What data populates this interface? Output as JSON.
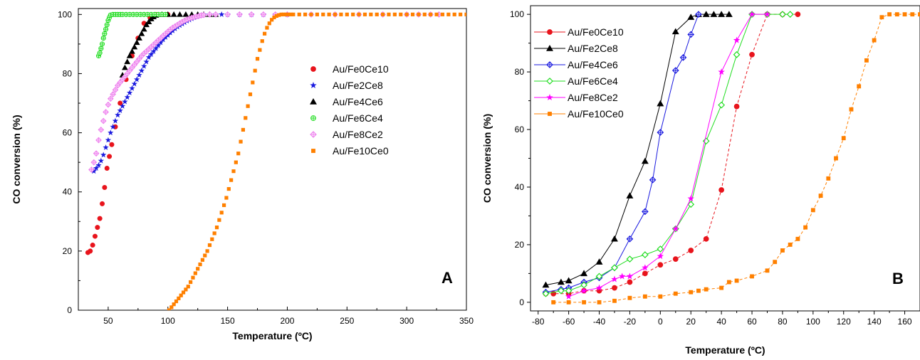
{
  "chart_data": [
    {
      "type": "scatter",
      "panel_label": "A",
      "xlabel": "Temperature (ºC)",
      "ylabel": "CO conversion (%)",
      "xlim": [
        25,
        350
      ],
      "ylim": [
        0,
        102
      ],
      "xticks": [
        50,
        100,
        150,
        200,
        250,
        300,
        350
      ],
      "yticks": [
        0,
        20,
        40,
        60,
        80,
        100
      ],
      "legend_position": "right-center",
      "series": [
        {
          "name": "Au/Fe0Ce10",
          "color": "#e8141c",
          "marker": "circle",
          "x": [
            33,
            35,
            37,
            39,
            41,
            43,
            45,
            47,
            49,
            51,
            53,
            56,
            60,
            65,
            70,
            75,
            80,
            85,
            90,
            95,
            100
          ],
          "y": [
            19.5,
            20,
            22,
            25,
            28,
            31,
            36,
            41.5,
            48,
            52,
            56,
            62,
            70,
            78,
            86,
            92,
            97,
            99,
            100,
            100,
            100
          ]
        },
        {
          "name": "Au/Fe2Ce8",
          "color": "#1a1adf",
          "marker": "star",
          "x": [
            38,
            40,
            42,
            44,
            46,
            48,
            50,
            52,
            54,
            56,
            58,
            60,
            62,
            64,
            66,
            68,
            70,
            72,
            74,
            76,
            78,
            80,
            82,
            84,
            86,
            88,
            90,
            92,
            94,
            96,
            98,
            100,
            102,
            104,
            106,
            108,
            110,
            112,
            114,
            116,
            118,
            120,
            122,
            124,
            126,
            128,
            130,
            135,
            140,
            145,
            150,
            160,
            170,
            180,
            190,
            200
          ],
          "y": [
            47,
            48,
            49,
            50.5,
            52.5,
            55,
            57.5,
            60,
            62,
            64,
            66,
            67.5,
            69,
            70.5,
            72,
            73.5,
            75,
            76.5,
            78,
            79.5,
            81,
            82.5,
            84,
            85.5,
            86.5,
            87.5,
            88.5,
            89.5,
            90.5,
            91.5,
            92.3,
            93,
            93.8,
            94.5,
            95.2,
            95.8,
            96.3,
            96.8,
            97.3,
            97.8,
            98.2,
            98.6,
            99,
            99.3,
            99.6,
            99.8,
            100,
            100,
            100,
            100,
            100,
            100,
            100,
            100,
            100,
            100
          ]
        },
        {
          "name": "Au/Fe4Ce6",
          "color": "#000000",
          "marker": "triangle",
          "x": [
            62,
            64,
            66,
            68,
            70,
            72,
            74,
            76,
            78,
            80,
            82,
            84,
            86,
            88,
            90,
            95,
            100,
            105,
            110,
            115,
            120,
            125,
            130,
            135,
            140
          ],
          "y": [
            79.5,
            82,
            84,
            86,
            87.5,
            89,
            90.5,
            92,
            93.5,
            95,
            96.5,
            97.5,
            98.5,
            99.2,
            99.7,
            100,
            100,
            100,
            100,
            100,
            100,
            100,
            100,
            100,
            100
          ]
        },
        {
          "name": "Au/Fe6Ce4",
          "color": "#22dd22",
          "marker": "crosscircle",
          "x": [
            42,
            43,
            44,
            45,
            46,
            47,
            48,
            49,
            50,
            51,
            52,
            54,
            56,
            58,
            60,
            62,
            65,
            68,
            71,
            74,
            77,
            80,
            83,
            86,
            89,
            92,
            95,
            98
          ],
          "y": [
            86,
            87,
            88.5,
            90,
            92,
            93.5,
            95,
            96.5,
            98,
            99,
            99.8,
            100,
            100,
            100,
            100,
            100,
            100,
            100,
            100,
            100,
            100,
            100,
            100,
            100,
            100,
            100,
            100,
            100
          ]
        },
        {
          "name": "Au/Fe8Ce2",
          "color": "#ee82ee",
          "marker": "crossdiamond",
          "x": [
            36,
            38,
            40,
            42,
            44,
            46,
            48,
            50,
            52,
            54,
            56,
            58,
            60,
            62,
            64,
            66,
            68,
            70,
            72,
            74,
            76,
            78,
            80,
            82,
            84,
            86,
            88,
            90,
            92,
            94,
            96,
            98,
            100,
            102,
            104,
            106,
            108,
            110,
            112,
            114,
            116,
            118,
            120,
            122,
            124,
            126,
            128,
            130,
            135,
            140,
            150,
            160,
            170,
            180,
            190,
            200,
            220,
            240,
            260,
            280,
            300,
            310,
            320,
            327
          ],
          "y": [
            47.5,
            50,
            53,
            57.5,
            61,
            64,
            67,
            69.5,
            71.5,
            73,
            74.5,
            76,
            77,
            78,
            79,
            80,
            81,
            82,
            83,
            84,
            85,
            86,
            86.8,
            87.5,
            88.3,
            89,
            89.8,
            90.5,
            91.3,
            92,
            92.8,
            93.5,
            94.2,
            94.9,
            95.5,
            96,
            96.5,
            97,
            97.5,
            97.9,
            98.3,
            98.6,
            98.9,
            99.1,
            99.3,
            99.5,
            99.7,
            99.8,
            100,
            100,
            100,
            100,
            100,
            100,
            100,
            100,
            100,
            100,
            100,
            100,
            100,
            100,
            100,
            100
          ]
        },
        {
          "name": "Au/Fe10Ce0",
          "color": "#ff8000",
          "marker": "square",
          "x": [
            101,
            103,
            105,
            107,
            109,
            111,
            113,
            115,
            117,
            119,
            121,
            123,
            125,
            127,
            129,
            131,
            133,
            135,
            137,
            139,
            141,
            143,
            145,
            147,
            149,
            151,
            153,
            155,
            157,
            159,
            161,
            163,
            165,
            167,
            169,
            171,
            173,
            175,
            177,
            179,
            181,
            183,
            185,
            187,
            189,
            191,
            193,
            195,
            197,
            199,
            201,
            203,
            205,
            210,
            215,
            220,
            225,
            230,
            235,
            240,
            245,
            250,
            255,
            260,
            265,
            270,
            275,
            280,
            285,
            290,
            295,
            300,
            305,
            310,
            315,
            320,
            325,
            330,
            335,
            340,
            345,
            350
          ],
          "y": [
            0,
            1,
            2,
            3,
            4,
            5,
            6,
            7,
            8,
            9.5,
            11,
            12.5,
            14,
            15.5,
            17,
            18.5,
            20,
            22,
            24,
            26,
            28,
            30.5,
            33,
            35.5,
            38,
            41,
            44,
            47,
            50,
            53,
            57,
            61,
            65,
            69,
            73,
            77,
            81,
            85,
            88,
            91,
            93.5,
            95.5,
            97,
            98.2,
            99,
            99.5,
            99.8,
            100,
            100,
            100,
            100,
            100,
            100,
            100,
            100,
            100,
            100,
            100,
            100,
            100,
            100,
            100,
            100,
            100,
            100,
            100,
            100,
            100,
            100,
            100,
            100,
            100,
            100,
            100,
            100,
            100,
            100,
            100,
            100,
            100,
            100,
            100
          ]
        }
      ]
    },
    {
      "type": "line",
      "panel_label": "B",
      "xlabel": "Temperature (ºC)",
      "ylabel": "CO conversion (%)",
      "xlim": [
        -85,
        170
      ],
      "ylim": [
        -3,
        103
      ],
      "xticks": [
        -80,
        -60,
        -40,
        -20,
        0,
        20,
        40,
        60,
        80,
        100,
        120,
        140,
        160
      ],
      "yticks": [
        0,
        20,
        40,
        60,
        80,
        100
      ],
      "legend_position": "top-left",
      "series": [
        {
          "name": "Au/Fe0Ce10",
          "color": "#e8141c",
          "marker": "circle",
          "x": [
            -75,
            -70,
            -60,
            -50,
            -40,
            -30,
            -20,
            -10,
            0,
            10,
            20,
            30,
            40,
            50,
            60,
            70,
            80,
            90
          ],
          "y": [
            3,
            3,
            3,
            4,
            4,
            5,
            7,
            10,
            13,
            15,
            18,
            22,
            39,
            68,
            86,
            100,
            100,
            100
          ]
        },
        {
          "name": "Au/Fe2Ce8",
          "color": "#000000",
          "marker": "triangle",
          "x": [
            -75,
            -65,
            -60,
            -50,
            -40,
            -30,
            -20,
            -10,
            0,
            10,
            20,
            25,
            30,
            35,
            40,
            45
          ],
          "y": [
            6,
            7,
            7.5,
            10,
            14,
            22,
            37,
            49,
            69,
            94,
            99,
            100,
            100,
            100,
            100,
            100
          ]
        },
        {
          "name": "Au/Fe4Ce6",
          "color": "#1a1adf",
          "marker": "crossdiamond",
          "x": [
            -75,
            -65,
            -60,
            -50,
            -40,
            -30,
            -20,
            -10,
            -5,
            0,
            10,
            15,
            20,
            25
          ],
          "y": [
            3.5,
            4.5,
            5,
            7,
            8.5,
            12,
            22,
            31.5,
            42.5,
            59,
            80.5,
            85,
            93,
            100
          ]
        },
        {
          "name": "Au/Fe6Ce4",
          "color": "#22dd22",
          "marker": "diamond",
          "x": [
            -75,
            -65,
            -60,
            -50,
            -40,
            -30,
            -20,
            -10,
            0,
            10,
            20,
            30,
            40,
            50,
            60,
            70,
            80,
            85
          ],
          "y": [
            3,
            4,
            4,
            6,
            9,
            12,
            15,
            16.5,
            18.5,
            25.5,
            34,
            56,
            68.5,
            86,
            100,
            100,
            100,
            100
          ]
        },
        {
          "name": "Au/Fe8Ce2",
          "color": "#ff00ff",
          "marker": "star",
          "x": [
            -60,
            -50,
            -40,
            -30,
            -25,
            -20,
            -10,
            0,
            10,
            20,
            40,
            50,
            60,
            70
          ],
          "y": [
            2,
            4,
            5,
            8,
            9,
            9,
            12,
            16,
            25.5,
            36,
            80,
            91,
            100,
            100
          ]
        },
        {
          "name": "Au/Fe10Ce0",
          "color": "#ff8000",
          "marker": "square",
          "x": [
            -70,
            -60,
            -50,
            -40,
            -30,
            -20,
            -10,
            0,
            10,
            20,
            25,
            30,
            40,
            45,
            50,
            60,
            70,
            75,
            80,
            85,
            90,
            95,
            100,
            105,
            110,
            115,
            120,
            125,
            130,
            135,
            140,
            145,
            150,
            155,
            160,
            165,
            170
          ],
          "y": [
            0,
            0,
            0,
            0,
            0.5,
            1.5,
            2,
            2,
            3,
            3.5,
            4,
            4.5,
            5,
            7,
            7.5,
            9,
            11,
            14,
            18,
            20,
            22,
            26,
            32,
            37,
            43,
            50,
            57,
            67,
            75,
            84,
            91,
            99,
            100,
            100,
            100,
            100,
            100
          ]
        }
      ]
    }
  ]
}
